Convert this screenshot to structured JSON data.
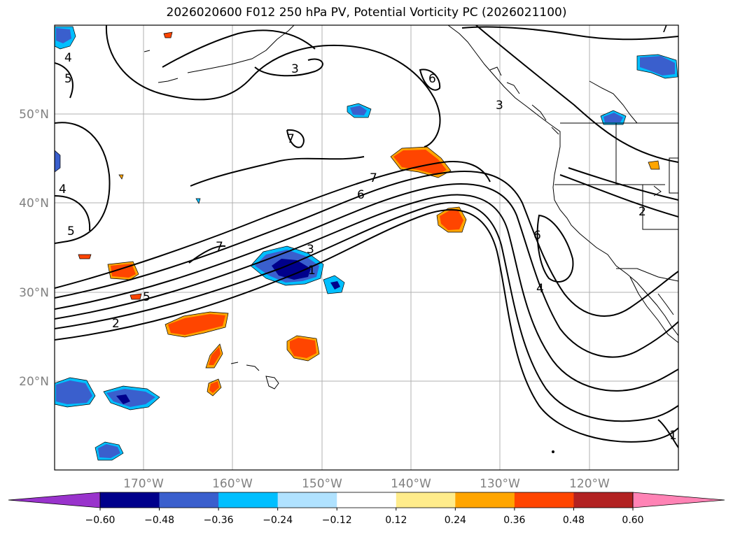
{
  "title": "2026020600 F012 250 hPa PV, Potential Vorticity PC (2026021100)",
  "lat_labels": [
    "50°N",
    "40°N",
    "30°N",
    "20°N"
  ],
  "lon_labels": [
    "170°W",
    "160°W",
    "150°W",
    "140°W",
    "130°W",
    "120°W"
  ],
  "contour_labels": [
    "4",
    "5",
    "3",
    "6",
    "3",
    "7",
    "7",
    "7",
    "6",
    "4",
    "5",
    "3",
    "1",
    "5",
    "2",
    "2",
    "6",
    "4",
    "7",
    "1"
  ],
  "colorbar": {
    "colors": [
      "#9933cc",
      "#00008b",
      "#3a5fcd",
      "#00bfff",
      "#b0e2ff",
      "#ffffff",
      "#ffec8b",
      "#ffa500",
      "#ff4500",
      "#b22222",
      "#ff83b5"
    ],
    "labels": [
      "−0.60",
      "−0.48",
      "−0.36",
      "−0.24",
      "−0.12",
      "0.12",
      "0.24",
      "0.36",
      "0.48",
      "0.60"
    ]
  },
  "colors": {
    "grid": "#b0b0b0",
    "frame": "#000000",
    "contour": "#000000"
  }
}
